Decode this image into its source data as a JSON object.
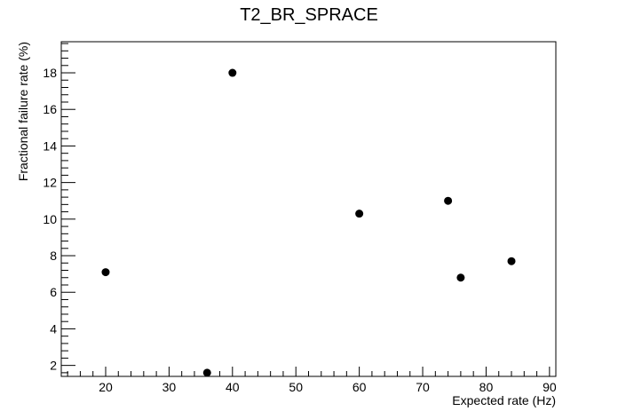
{
  "chart_data": {
    "type": "scatter",
    "title": "T2_BR_SPRACE",
    "xlabel": "Expected rate (Hz)",
    "ylabel": "Fractional failure rate (%)",
    "xlim": [
      13,
      91
    ],
    "ylim": [
      1.4,
      19.7
    ],
    "x_ticks": [
      20,
      30,
      40,
      50,
      60,
      70,
      80,
      90
    ],
    "y_ticks": [
      2,
      4,
      6,
      8,
      10,
      12,
      14,
      16,
      18
    ],
    "grid": false,
    "legend": "none",
    "marker_color": "#000000",
    "points": [
      {
        "x": 20,
        "y": 7.1
      },
      {
        "x": 36,
        "y": 1.6
      },
      {
        "x": 40,
        "y": 18.0
      },
      {
        "x": 60,
        "y": 10.3
      },
      {
        "x": 74,
        "y": 11.0
      },
      {
        "x": 76,
        "y": 6.8
      },
      {
        "x": 84,
        "y": 7.7
      }
    ]
  }
}
